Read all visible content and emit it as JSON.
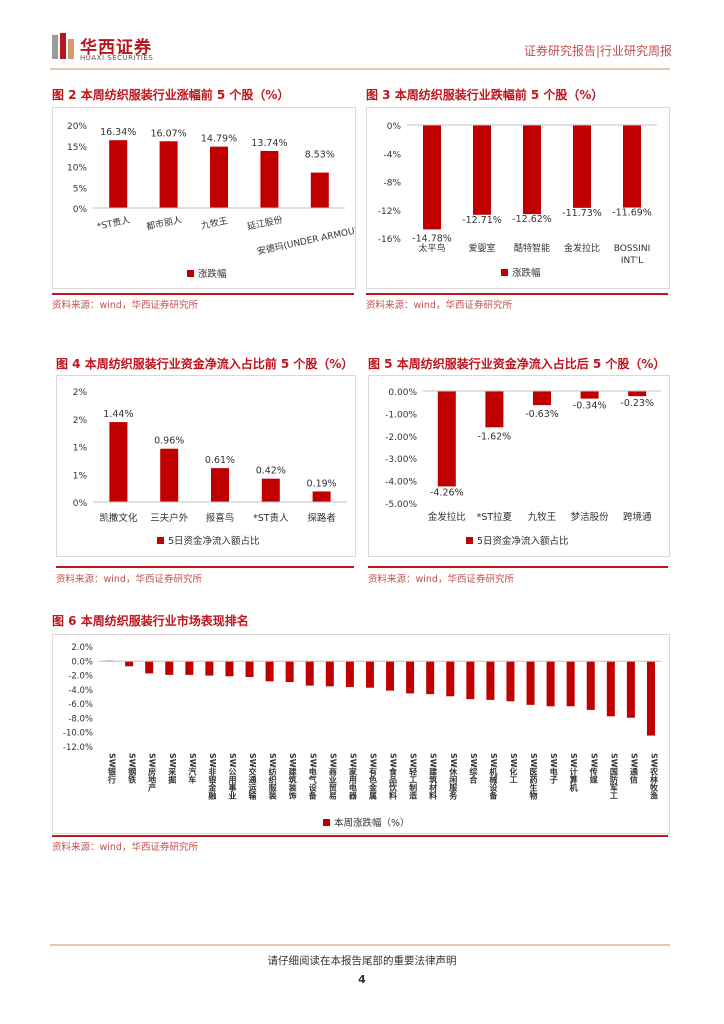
{
  "header": {
    "logo_cn": "华西证券",
    "logo_en": "HUAXI SECURITIES",
    "doc_type": "证券研究报告|行业研究周报"
  },
  "colors": {
    "bar": "#c00000",
    "accent": "#c0141c",
    "rule": "#e3c9b2"
  },
  "figures": {
    "fig2": {
      "title": "图 2 本周纺织服装行业涨幅前 5 个股（%）",
      "source": "资料来源：wind，华西证券研究所"
    },
    "fig3": {
      "title": "图 3 本周纺织服装行业跌幅前 5 个股（%）",
      "source": "资料来源：wind，华西证券研究所"
    },
    "fig4": {
      "title": "图 4 本周纺织服装行业资金净流入占比前 5 个股（%）",
      "source": "资料来源：wind，华西证券研究所"
    },
    "fig5": {
      "title": "图 5 本周纺织服装行业资金净流入占比后 5 个股（%）",
      "source": "资料来源：wind，华西证券研究所"
    },
    "fig6": {
      "title": "图 6 本周纺织服装行业市场表现排名",
      "source": "资料来源：wind，华西证券研究所"
    }
  },
  "chart_data": [
    {
      "id": "fig2",
      "type": "bar",
      "categories": [
        "*ST贵人",
        "都市丽人",
        "九牧王",
        "延江股份",
        "安德玛(UNDER ARMOUR)-A"
      ],
      "values": [
        16.34,
        16.07,
        14.79,
        13.74,
        8.53
      ],
      "labels": [
        "16.34%",
        "16.07%",
        "14.79%",
        "13.74%",
        "8.53%"
      ],
      "ylim": [
        0,
        20
      ],
      "ticks": [
        "0%",
        "5%",
        "10%",
        "15%",
        "20%"
      ],
      "legend": "涨跌幅"
    },
    {
      "id": "fig3",
      "type": "bar",
      "categories": [
        "太平鸟",
        "爱婴室",
        "酷特智能",
        "金发拉比",
        "BOSSINI INT'L"
      ],
      "values": [
        -14.78,
        -12.71,
        -12.62,
        -11.73,
        -11.69
      ],
      "labels": [
        "-14.78%",
        "-12.71%",
        "-12.62%",
        "-11.73%",
        "-11.69%"
      ],
      "ylim": [
        -16,
        0
      ],
      "ticks": [
        "0%",
        "-4%",
        "-8%",
        "-12%",
        "-16%"
      ],
      "legend": "涨跌幅"
    },
    {
      "id": "fig4",
      "type": "bar",
      "categories": [
        "凯撒文化",
        "三夫户外",
        "报喜鸟",
        "*ST贵人",
        "探路者"
      ],
      "values": [
        1.44,
        0.96,
        0.61,
        0.42,
        0.19
      ],
      "labels": [
        "1.44%",
        "0.96%",
        "0.61%",
        "0.42%",
        "0.19%"
      ],
      "ylim": [
        0,
        2
      ],
      "ticks": [
        "0%",
        "1%",
        "1%",
        "2%",
        "2%"
      ],
      "legend": "5日资金净流入额占比"
    },
    {
      "id": "fig5",
      "type": "bar",
      "categories": [
        "金发拉比",
        "*ST拉夏",
        "九牧王",
        "梦洁股份",
        "跨境通"
      ],
      "values": [
        -4.26,
        -1.62,
        -0.63,
        -0.34,
        -0.23
      ],
      "labels": [
        "-4.26%",
        "-1.62%",
        "-0.63%",
        "-0.34%",
        "-0.23%"
      ],
      "ylim": [
        -5,
        0
      ],
      "ticks": [
        "0.00%",
        "-1.00%",
        "-2.00%",
        "-3.00%",
        "-4.00%",
        "-5.00%"
      ],
      "legend": "5日资金净流入额占比"
    },
    {
      "id": "fig6",
      "type": "bar",
      "categories": [
        "SW银行",
        "SW钢铁",
        "SW房地产",
        "SW采掘",
        "SW汽车",
        "SW非银金融",
        "SW公用事业",
        "SW交通运输",
        "SW纺织服装",
        "SW建筑装饰",
        "SW电气设备",
        "SW商业贸易",
        "SW家用电器",
        "SW有色金属",
        "SW食品饮料",
        "SW轻工制造",
        "SW建筑材料",
        "SW休闲服务",
        "SW综合",
        "SW机械设备",
        "SW化工",
        "SW医药生物",
        "SW电子",
        "SW计算机",
        "SW传媒",
        "SW国防军工",
        "SW通信",
        "SW农林牧渔"
      ],
      "values": [
        0.1,
        -0.7,
        -1.7,
        -1.9,
        -1.9,
        -2.0,
        -2.1,
        -2.2,
        -2.8,
        -2.9,
        -3.4,
        -3.5,
        -3.6,
        -3.7,
        -4.1,
        -4.5,
        -4.6,
        -4.9,
        -5.3,
        -5.4,
        -5.6,
        -6.1,
        -6.3,
        -6.3,
        -6.8,
        -7.7,
        -7.9,
        -10.4
      ],
      "ylim": [
        -12,
        2
      ],
      "ticks": [
        "2.0%",
        "0.0%",
        "-2.0%",
        "-4.0%",
        "-6.0%",
        "-8.0%",
        "-10.0%",
        "-12.0%"
      ],
      "legend": "本周涨跌幅（%）"
    }
  ],
  "footer": {
    "text": "请仔细阅读在本报告尾部的重要法律声明",
    "page": "4"
  }
}
